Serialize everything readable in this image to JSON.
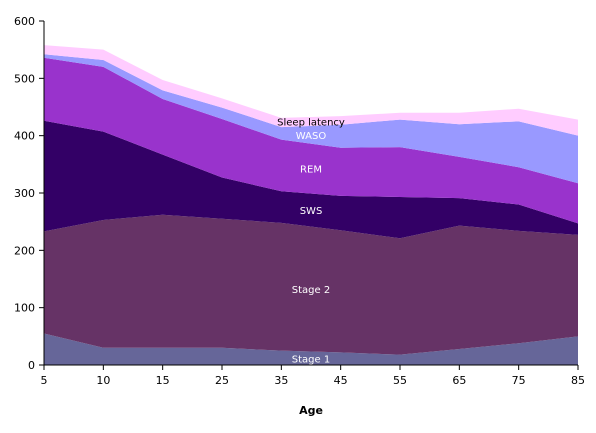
{
  "chart_data": {
    "type": "area",
    "stacked": true,
    "title": "",
    "xlabel": "Age",
    "ylabel": "",
    "x": [
      5,
      10,
      15,
      25,
      35,
      45,
      55,
      65,
      75,
      85
    ],
    "x_tick_labels": [
      "5",
      "10",
      "15",
      "25",
      "35",
      "45",
      "55",
      "65",
      "75",
      "85"
    ],
    "ylim": [
      0,
      600
    ],
    "y_ticks": [
      0,
      100,
      200,
      300,
      400,
      500,
      600
    ],
    "y_tick_labels": [
      "0",
      "100",
      "200",
      "300",
      "400",
      "500",
      "600"
    ],
    "grid": false,
    "legend": "none",
    "series": [
      {
        "name": "Stage 1",
        "color": "#666699",
        "label_color": "#ffffff",
        "values": [
          55,
          30,
          30,
          30,
          25,
          22,
          18,
          28,
          38,
          50
        ]
      },
      {
        "name": "Stage 2",
        "color": "#663366",
        "label_color": "#ffffff",
        "values": [
          178,
          223,
          232,
          225,
          223,
          213,
          203,
          215,
          196,
          177
        ]
      },
      {
        "name": "SWS",
        "color": "#330066",
        "label_color": "#ffffff",
        "values": [
          193,
          154,
          105,
          72,
          55,
          60,
          72,
          48,
          46,
          20
        ]
      },
      {
        "name": "REM",
        "color": "#9933cc",
        "label_color": "#ffffff",
        "values": [
          110,
          113,
          97,
          102,
          90,
          84,
          87,
          72,
          65,
          70
        ]
      },
      {
        "name": "WASO",
        "color": "#9999ff",
        "label_color": "#ffffff",
        "values": [
          6,
          12,
          15,
          20,
          22,
          40,
          48,
          57,
          80,
          83
        ]
      },
      {
        "name": "Sleep latency",
        "color": "#ffccff",
        "label_color": "#000000",
        "values": [
          16,
          18,
          18,
          16,
          16,
          15,
          12,
          20,
          22,
          28
        ]
      }
    ]
  }
}
